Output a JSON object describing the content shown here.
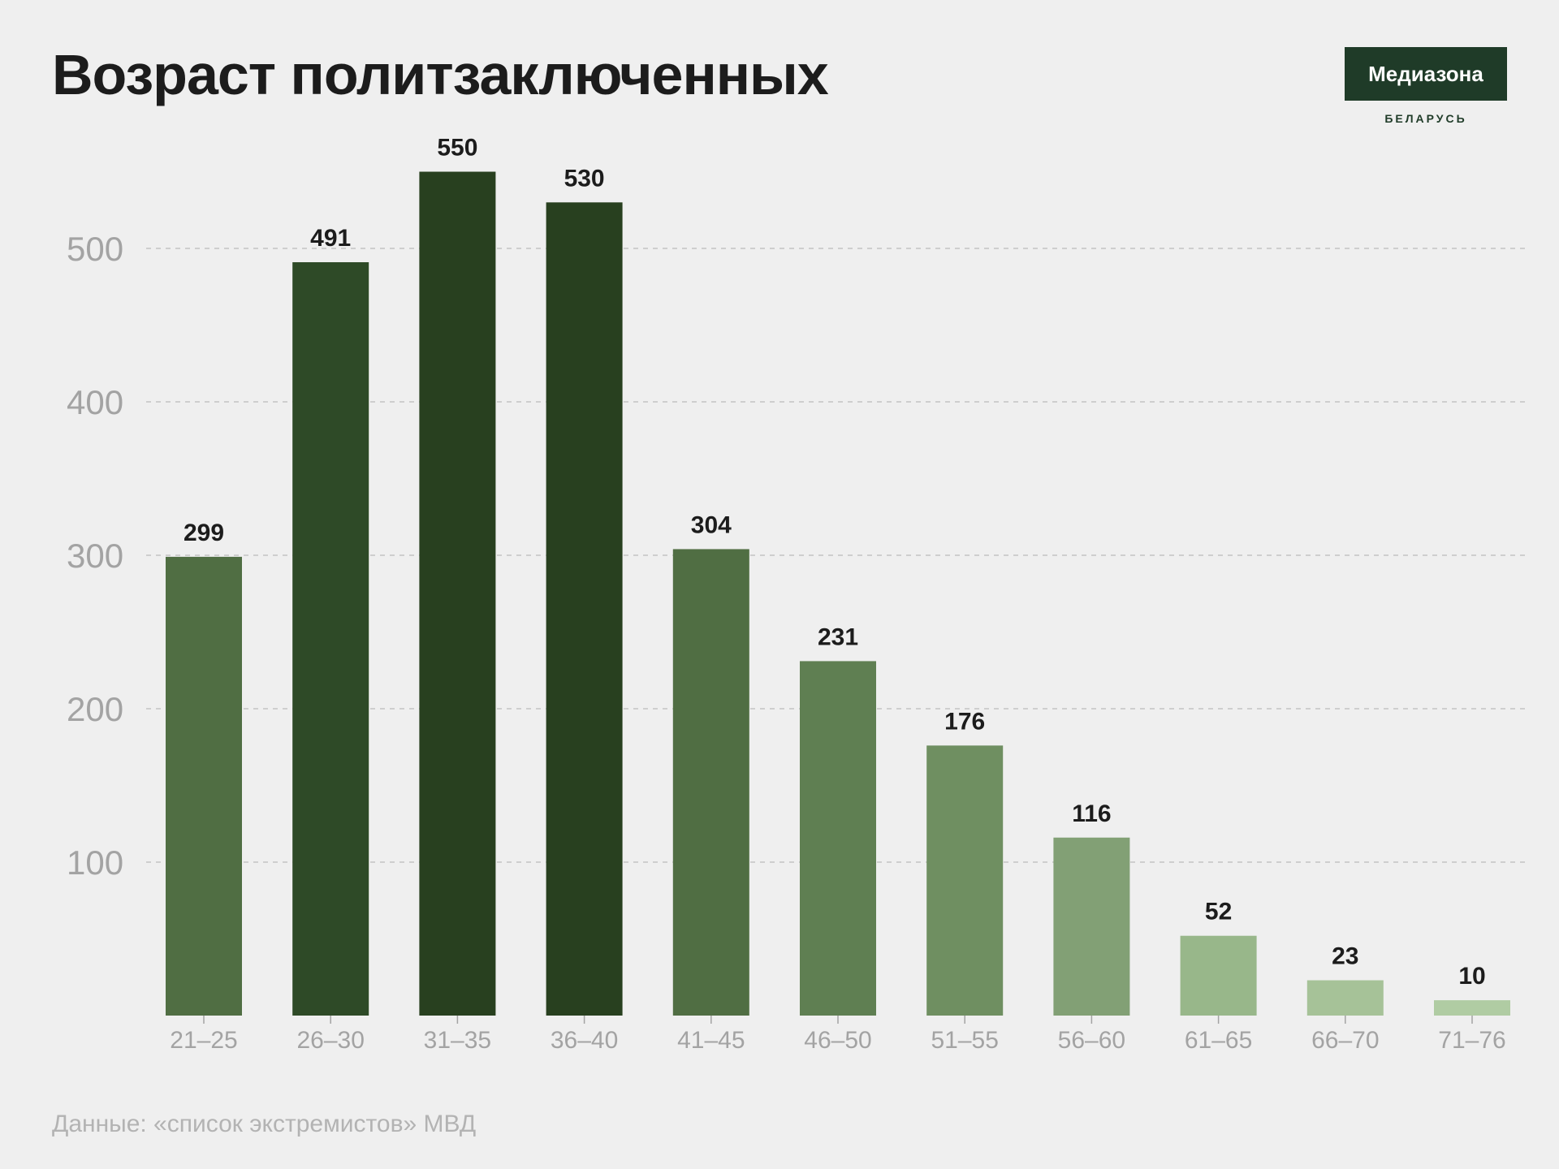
{
  "header": {
    "title": "Возраст политзаключенных"
  },
  "brand": {
    "logo_text": "Медиазона",
    "logo_sub": "БЕЛАРУСЬ",
    "logo_color": "#1f3b28"
  },
  "footer": {
    "source": "Данные: «список экстремистов» МВД"
  },
  "chart_data": {
    "type": "bar",
    "title": "Возраст политзаключенных",
    "xlabel": "",
    "ylabel": "",
    "categories": [
      "21–25",
      "26–30",
      "31–35",
      "36–40",
      "41–45",
      "46–50",
      "51–55",
      "56–60",
      "61–65",
      "66–70",
      "71–76"
    ],
    "values": [
      299,
      491,
      550,
      530,
      304,
      231,
      176,
      116,
      52,
      23,
      10
    ],
    "colors": [
      "#506e43",
      "#2e4a27",
      "#28401f",
      "#28401f",
      "#506e43",
      "#5f7f52",
      "#6f8f61",
      "#82a075",
      "#98b78a",
      "#a6c298",
      "#b0cca3"
    ],
    "yticks": [
      100,
      200,
      300,
      400,
      500
    ],
    "ylim": [
      0,
      550
    ],
    "grid": true,
    "legend": "none"
  }
}
